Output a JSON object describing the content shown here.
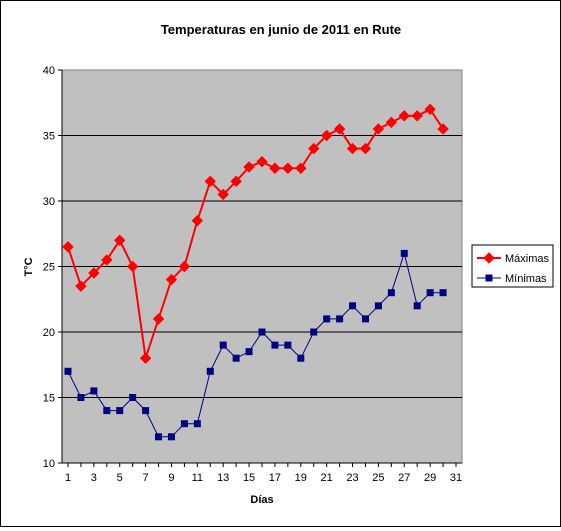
{
  "chart_data": {
    "type": "line",
    "title": "Temperaturas en junio de 2011 en Rute",
    "xlabel": "Días",
    "ylabel": "T°C",
    "x_range": [
      1,
      31
    ],
    "x_ticks": [
      1,
      3,
      5,
      7,
      9,
      11,
      13,
      15,
      17,
      19,
      21,
      23,
      25,
      27,
      29,
      31
    ],
    "ylim": [
      10,
      40
    ],
    "y_ticks": [
      10,
      15,
      20,
      25,
      30,
      35,
      40
    ],
    "grid": "horizontal",
    "plot_background": "#c0c0c0",
    "legend_position": "right",
    "x": [
      1,
      2,
      3,
      4,
      5,
      6,
      7,
      8,
      9,
      10,
      11,
      12,
      13,
      14,
      15,
      16,
      17,
      18,
      19,
      20,
      21,
      22,
      23,
      24,
      25,
      26,
      27,
      28,
      29,
      30
    ],
    "series": [
      {
        "name": "Máximas",
        "color": "#ff0000",
        "marker": "diamond",
        "values": [
          26.5,
          23.5,
          24.5,
          25.5,
          27,
          25,
          18,
          21,
          24,
          25,
          28.5,
          31.5,
          30.5,
          31.5,
          32.6,
          33,
          32.5,
          32.5,
          32.5,
          34,
          35,
          35.5,
          34,
          34,
          35.5,
          36,
          36.5,
          36.5,
          37,
          35.5
        ]
      },
      {
        "name": "Mínimas",
        "color": "#000080",
        "marker": "square",
        "values": [
          17,
          15,
          15.5,
          14,
          14,
          15,
          14,
          12,
          12,
          13,
          13,
          17,
          19,
          18,
          18.5,
          20,
          19,
          19,
          18,
          20,
          21,
          21,
          22,
          21,
          22,
          23,
          26,
          22,
          23,
          23
        ]
      }
    ]
  }
}
